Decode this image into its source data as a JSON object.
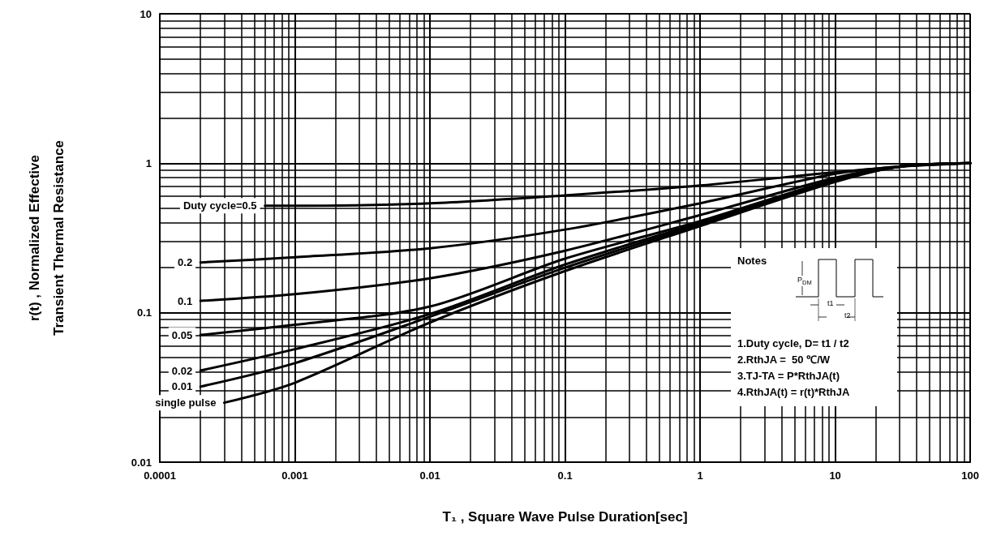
{
  "chart_data": {
    "type": "line",
    "xlabel": "T₁ , Square Wave Pulse Duration[sec]",
    "ylabel": "r(t) , Normalized Effective\nTransient Thermal Resistance",
    "log": "xy",
    "grid": true,
    "legend": false,
    "marker": "none",
    "line_style": "solid",
    "xlim": [
      0.0001,
      100
    ],
    "xticks": [
      0.0001,
      0.001,
      0.01,
      0.1,
      1,
      10,
      100
    ],
    "ylim": [
      0.01,
      10
    ],
    "yticks": [
      0.01,
      0.1,
      1,
      10
    ],
    "series": [
      {
        "name": "Duty cycle=0.5",
        "color": "#000000",
        "x": [
          0.0006,
          0.001,
          0.01,
          0.1,
          1,
          10,
          30,
          100
        ],
        "values": [
          0.52,
          0.52,
          0.54,
          0.61,
          0.71,
          0.87,
          0.95,
          1.0
        ]
      },
      {
        "name": "0.2",
        "color": "#000000",
        "x": [
          0.0002,
          0.001,
          0.01,
          0.1,
          1,
          10,
          30,
          100
        ],
        "values": [
          0.217,
          0.235,
          0.27,
          0.36,
          0.54,
          0.85,
          0.95,
          1.0
        ]
      },
      {
        "name": "0.1",
        "color": "#000000",
        "x": [
          0.0002,
          0.001,
          0.01,
          0.1,
          1,
          10,
          30,
          100
        ],
        "values": [
          0.12,
          0.133,
          0.17,
          0.26,
          0.45,
          0.8,
          0.95,
          1.0
        ]
      },
      {
        "name": "0.05",
        "color": "#000000",
        "x": [
          0.0002,
          0.001,
          0.01,
          0.1,
          1,
          10,
          30,
          100
        ],
        "values": [
          0.071,
          0.083,
          0.11,
          0.23,
          0.41,
          0.78,
          0.95,
          1.0
        ]
      },
      {
        "name": "0.02",
        "color": "#000000",
        "x": [
          0.0002,
          0.001,
          0.01,
          0.1,
          1,
          10,
          30,
          100
        ],
        "values": [
          0.041,
          0.057,
          0.098,
          0.21,
          0.4,
          0.77,
          0.95,
          1.0
        ]
      },
      {
        "name": "0.01",
        "color": "#000000",
        "x": [
          0.0002,
          0.001,
          0.01,
          0.1,
          1,
          10,
          30,
          100
        ],
        "values": [
          0.032,
          0.046,
          0.094,
          0.2,
          0.39,
          0.76,
          0.95,
          1.0
        ]
      },
      {
        "name": "single pulse",
        "color": "#000000",
        "x": [
          0.0003,
          0.001,
          0.01,
          0.1,
          1,
          10,
          30,
          100
        ],
        "values": [
          0.025,
          0.034,
          0.086,
          0.19,
          0.38,
          0.75,
          0.95,
          1.0
        ]
      }
    ],
    "annotations": [
      "Notes",
      "P$_{DM}$",
      "t1",
      "t2",
      "1.Duty cycle, D= t1 / t2",
      "2.RthJA =  50 ℃/W",
      "3.TJ-TA = P*RthJA(t)",
      "4.RthJA(t) = r(t)*RthJA"
    ]
  }
}
